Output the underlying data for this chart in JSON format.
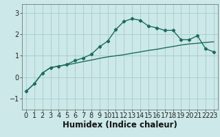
{
  "xlabel": "Humidex (Indice chaleur)",
  "ylabel": "",
  "bg_color": "#cce8e8",
  "grid_color": "#aacfcf",
  "line_color": "#1a6b60",
  "xlim": [
    -0.5,
    23.5
  ],
  "ylim": [
    -1.5,
    3.4
  ],
  "yticks": [
    -1,
    0,
    1,
    2,
    3
  ],
  "xticks": [
    0,
    1,
    2,
    3,
    4,
    5,
    6,
    7,
    8,
    9,
    10,
    11,
    12,
    13,
    14,
    15,
    16,
    17,
    18,
    19,
    20,
    21,
    22,
    23
  ],
  "curve1_x": [
    0,
    1,
    2,
    3,
    4,
    5,
    6,
    7,
    8,
    9,
    10,
    11,
    12,
    13,
    14,
    15,
    16,
    17,
    18,
    19,
    20,
    21,
    22,
    23
  ],
  "curve1_y": [
    -0.65,
    -0.3,
    0.2,
    0.45,
    0.52,
    0.6,
    0.78,
    0.9,
    1.07,
    1.42,
    1.68,
    2.22,
    2.6,
    2.72,
    2.65,
    2.38,
    2.3,
    2.18,
    2.18,
    1.75,
    1.75,
    1.93,
    1.33,
    1.18
  ],
  "curve2_x": [
    0,
    1,
    2,
    3,
    4,
    5,
    6,
    7,
    8,
    9,
    10,
    11,
    12,
    13,
    14,
    15,
    16,
    17,
    18,
    19,
    20,
    21,
    22,
    23
  ],
  "curve2_y": [
    -0.65,
    -0.3,
    0.2,
    0.45,
    0.52,
    0.58,
    0.65,
    0.73,
    0.8,
    0.88,
    0.95,
    1.0,
    1.05,
    1.12,
    1.18,
    1.25,
    1.3,
    1.37,
    1.43,
    1.5,
    1.55,
    1.58,
    1.62,
    1.65
  ],
  "fontsize_label": 8,
  "fontsize_tick": 7,
  "fontsize_xlabel": 8.5
}
